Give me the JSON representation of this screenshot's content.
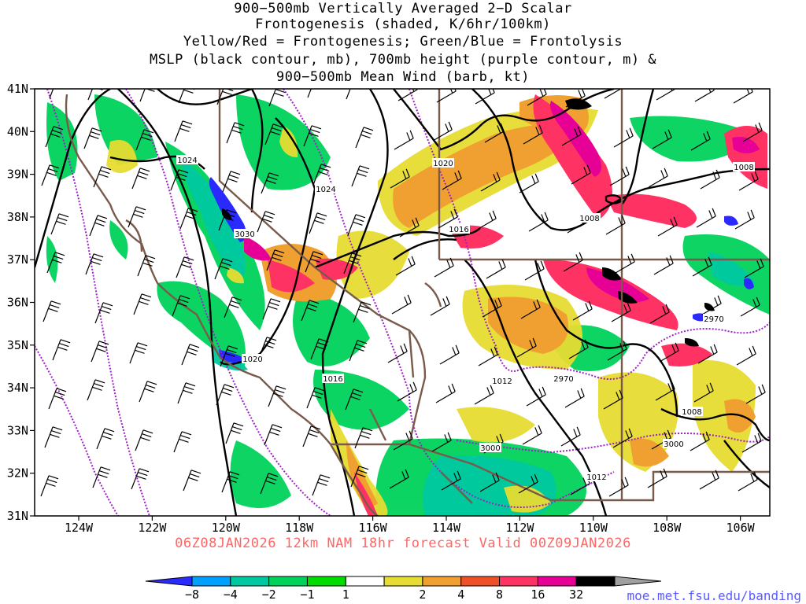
{
  "title_lines": [
    "900−500mb Vertically Averaged 2−D Scalar",
    "Frontogenesis (shaded, K/6hr/100km)",
    "Yellow/Red = Frontogenesis;  Green/Blue = Frontolysis",
    "MSLP (black contour, mb), 700mb height (purple contour, m) &",
    "900−500mb Mean Wind (barb, kt)"
  ],
  "lat_labels": [
    "41N",
    "40N",
    "39N",
    "38N",
    "37N",
    "36N",
    "35N",
    "34N",
    "33N",
    "32N",
    "31N"
  ],
  "lon_labels": [
    "124W",
    "122W",
    "120W",
    "118W",
    "116W",
    "114W",
    "112W",
    "110W",
    "108W",
    "106W"
  ],
  "footer": "06Z08JAN2026 12km NAM 18hr forecast Valid 00Z09JAN2026",
  "url": "moe.met.fsu.edu/banding",
  "colorbar": {
    "ticks": [
      "−8",
      "−4",
      "−2",
      "−1",
      "1",
      "2",
      "4",
      "8",
      "16",
      "32"
    ],
    "colors": [
      "#2a2aff",
      "#00a0ff",
      "#00c8a0",
      "#00d25a",
      "#00dc00",
      "#ffffff",
      "#e6dc32",
      "#f0a030",
      "#f05028",
      "#ff3264",
      "#e60096",
      "#000000",
      "#a0a0a0"
    ]
  },
  "mslp_labels": [
    "1024",
    "1024",
    "1020",
    "1016",
    "1008",
    "1008",
    "1020",
    "1016",
    "1012",
    "1012",
    "1008"
  ],
  "height_labels": [
    "3030",
    "2970",
    "2970",
    "3000",
    "3000"
  ],
  "colors": {
    "state_border": "#7a5a4a",
    "mslp": "#000000",
    "height": "#a020c8",
    "footer": "#ff6666",
    "url": "#5a5aff"
  }
}
